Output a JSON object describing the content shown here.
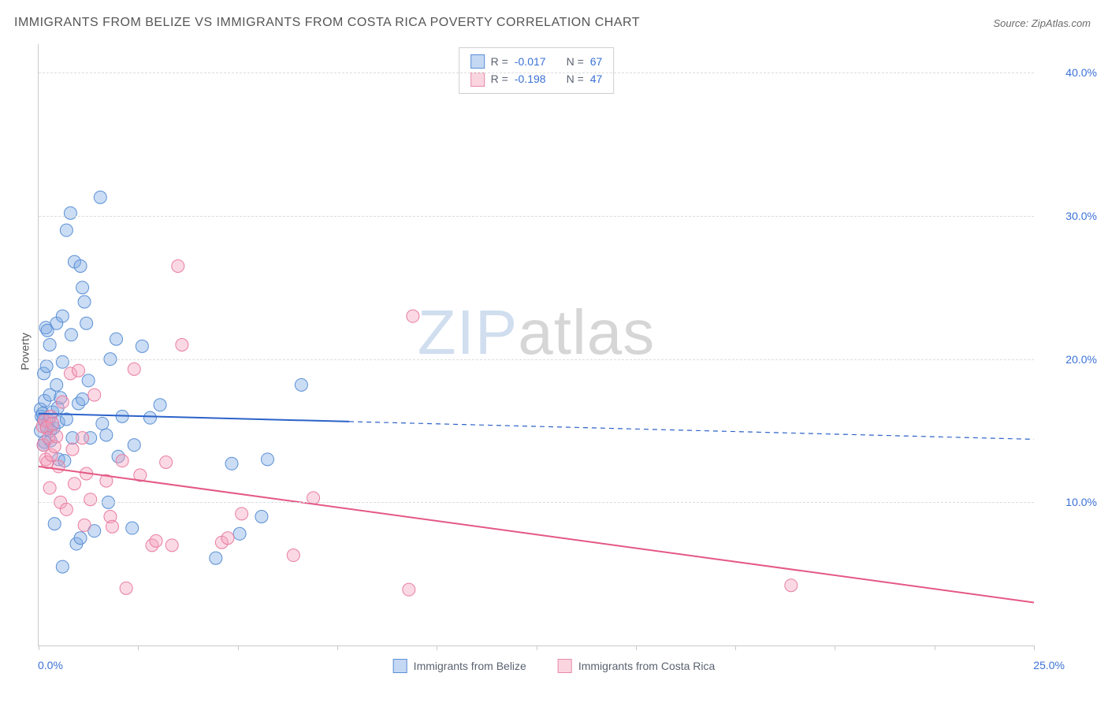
{
  "title": "IMMIGRANTS FROM BELIZE VS IMMIGRANTS FROM COSTA RICA POVERTY CORRELATION CHART",
  "source": "Source: ZipAtlas.com",
  "ylabel": "Poverty",
  "watermark_zip": "ZIP",
  "watermark_atlas": "atlas",
  "chart": {
    "type": "scatter-with-trendlines",
    "xlim": [
      0,
      25
    ],
    "ylim": [
      0,
      42
    ],
    "x_tick_positions": [
      0,
      2.5,
      5,
      7.5,
      10,
      12.5,
      15,
      17.5,
      20,
      22.5,
      25
    ],
    "x_tick_labels": {
      "first": "0.0%",
      "last": "25.0%"
    },
    "y_gridlines": [
      10,
      20,
      30,
      40
    ],
    "y_tick_labels": [
      "10.0%",
      "20.0%",
      "30.0%",
      "40.0%"
    ],
    "background_color": "#ffffff",
    "grid_color": "#dcdcdc",
    "axis_color": "#c9c9c9",
    "ytick_label_color": "#3a71d6",
    "series": {
      "belize": {
        "label": "Immigrants from Belize",
        "R": "-0.017",
        "N": "67",
        "fill_color": "rgba(126,169,228,0.40)",
        "stroke_color": "#5a8fd6",
        "trend_color": "#2c62c9",
        "trend_solid_end_x": 7.8,
        "trend_y_start": 16.2,
        "trend_y_end": 14.4,
        "points": [
          [
            0.05,
            16.5
          ],
          [
            0.05,
            15.0
          ],
          [
            0.07,
            16.0
          ],
          [
            0.1,
            16.2
          ],
          [
            0.12,
            14.0
          ],
          [
            0.12,
            15.8
          ],
          [
            0.13,
            19.0
          ],
          [
            0.15,
            14.2
          ],
          [
            0.15,
            17.1
          ],
          [
            0.18,
            22.2
          ],
          [
            0.2,
            19.5
          ],
          [
            0.2,
            15.3
          ],
          [
            0.22,
            22.0
          ],
          [
            0.25,
            15.7
          ],
          [
            0.28,
            21.0
          ],
          [
            0.28,
            17.5
          ],
          [
            0.3,
            15.0
          ],
          [
            0.3,
            14.3
          ],
          [
            0.35,
            16.3
          ],
          [
            0.38,
            15.2
          ],
          [
            0.4,
            8.5
          ],
          [
            0.45,
            18.2
          ],
          [
            0.45,
            22.5
          ],
          [
            0.48,
            16.6
          ],
          [
            0.5,
            15.6
          ],
          [
            0.5,
            13.0
          ],
          [
            0.55,
            17.3
          ],
          [
            0.6,
            23.0
          ],
          [
            0.6,
            19.8
          ],
          [
            0.65,
            12.9
          ],
          [
            0.7,
            29.0
          ],
          [
            0.7,
            15.8
          ],
          [
            0.8,
            30.2
          ],
          [
            0.82,
            21.7
          ],
          [
            0.85,
            14.5
          ],
          [
            0.9,
            26.8
          ],
          [
            0.95,
            7.1
          ],
          [
            1.0,
            16.9
          ],
          [
            1.05,
            26.5
          ],
          [
            1.1,
            25.0
          ],
          [
            1.1,
            17.2
          ],
          [
            1.15,
            24.0
          ],
          [
            1.2,
            22.5
          ],
          [
            1.25,
            18.5
          ],
          [
            1.3,
            14.5
          ],
          [
            1.4,
            8.0
          ],
          [
            1.55,
            31.3
          ],
          [
            1.6,
            15.5
          ],
          [
            1.7,
            14.7
          ],
          [
            1.75,
            10.0
          ],
          [
            1.8,
            20.0
          ],
          [
            1.95,
            21.4
          ],
          [
            2.0,
            13.2
          ],
          [
            2.1,
            16.0
          ],
          [
            2.35,
            8.2
          ],
          [
            2.4,
            14.0
          ],
          [
            2.6,
            20.9
          ],
          [
            2.8,
            15.9
          ],
          [
            3.05,
            16.8
          ],
          [
            4.45,
            6.1
          ],
          [
            4.85,
            12.7
          ],
          [
            5.05,
            7.8
          ],
          [
            5.6,
            9.0
          ],
          [
            5.75,
            13.0
          ],
          [
            6.6,
            18.2
          ],
          [
            0.6,
            5.5
          ],
          [
            1.05,
            7.5
          ]
        ]
      },
      "costarica": {
        "label": "Immigrants from Costa Rica",
        "R": "-0.198",
        "N": "47",
        "fill_color": "rgba(244,161,187,0.40)",
        "stroke_color": "#e87da0",
        "trend_color": "#e45884",
        "trend_solid_end_x": 25,
        "trend_y_start": 12.5,
        "trend_y_end": 3.0,
        "points": [
          [
            0.1,
            15.3
          ],
          [
            0.12,
            14.0
          ],
          [
            0.15,
            15.7
          ],
          [
            0.18,
            13.0
          ],
          [
            0.2,
            15.2
          ],
          [
            0.22,
            12.8
          ],
          [
            0.25,
            14.5
          ],
          [
            0.28,
            11.0
          ],
          [
            0.3,
            16.0
          ],
          [
            0.32,
            13.3
          ],
          [
            0.35,
            15.5
          ],
          [
            0.4,
            13.9
          ],
          [
            0.45,
            14.6
          ],
          [
            0.5,
            12.5
          ],
          [
            0.55,
            10.0
          ],
          [
            0.6,
            17.0
          ],
          [
            0.7,
            9.5
          ],
          [
            0.8,
            19.0
          ],
          [
            0.85,
            13.7
          ],
          [
            0.9,
            11.3
          ],
          [
            1.0,
            19.2
          ],
          [
            1.1,
            14.5
          ],
          [
            1.15,
            8.4
          ],
          [
            1.2,
            12.0
          ],
          [
            1.3,
            10.2
          ],
          [
            1.4,
            17.5
          ],
          [
            1.7,
            11.5
          ],
          [
            1.8,
            9.0
          ],
          [
            1.85,
            8.3
          ],
          [
            2.1,
            12.9
          ],
          [
            2.2,
            4.0
          ],
          [
            2.4,
            19.3
          ],
          [
            2.55,
            11.9
          ],
          [
            2.85,
            7.0
          ],
          [
            2.95,
            7.3
          ],
          [
            3.2,
            12.8
          ],
          [
            3.35,
            7.0
          ],
          [
            3.5,
            26.5
          ],
          [
            3.6,
            21.0
          ],
          [
            4.6,
            7.2
          ],
          [
            4.75,
            7.5
          ],
          [
            5.1,
            9.2
          ],
          [
            6.4,
            6.3
          ],
          [
            6.9,
            10.3
          ],
          [
            9.4,
            23.0
          ],
          [
            9.3,
            3.9
          ],
          [
            18.9,
            4.2
          ]
        ]
      }
    },
    "marker_radius": 8,
    "marker_stroke_width": 1,
    "trend_width": 2
  },
  "legend_labels": {
    "R_prefix": "R = ",
    "N_prefix": "N = "
  }
}
